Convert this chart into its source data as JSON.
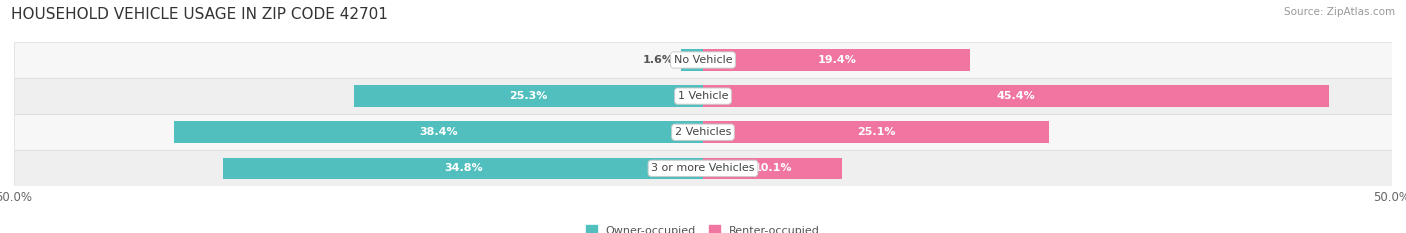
{
  "title": "HOUSEHOLD VEHICLE USAGE IN ZIP CODE 42701",
  "source": "Source: ZipAtlas.com",
  "categories": [
    "No Vehicle",
    "1 Vehicle",
    "2 Vehicles",
    "3 or more Vehicles"
  ],
  "owner_values": [
    1.6,
    25.3,
    38.4,
    34.8
  ],
  "renter_values": [
    19.4,
    45.4,
    25.1,
    10.1
  ],
  "owner_color": "#52BFBF",
  "renter_color": "#F075A0",
  "row_bg_light": "#F7F7F7",
  "row_bg_dark": "#EFEFEF",
  "x_min": -50.0,
  "x_max": 50.0,
  "x_tick_labels": [
    "50.0%",
    "50.0%"
  ],
  "legend_labels": [
    "Owner-occupied",
    "Renter-occupied"
  ],
  "title_fontsize": 11,
  "source_fontsize": 7.5,
  "label_fontsize": 8,
  "category_fontsize": 8,
  "tick_fontsize": 8.5
}
